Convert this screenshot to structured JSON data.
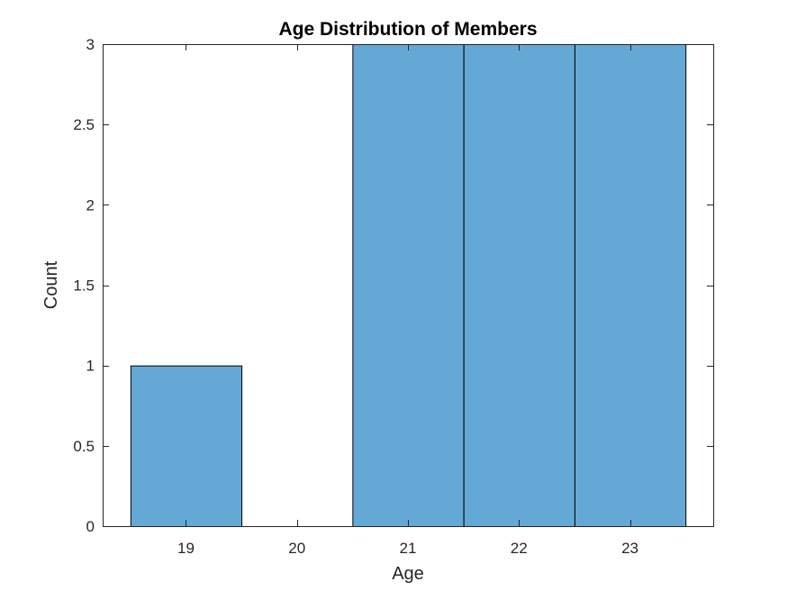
{
  "chart_data": {
    "type": "bar",
    "title": "Age Distribution of Members",
    "xlabel": "Age",
    "ylabel": "Count",
    "categories": [
      "19",
      "20",
      "21",
      "22",
      "23"
    ],
    "values": [
      1,
      0,
      3,
      3,
      3
    ],
    "xlim": [
      18.25,
      23.75
    ],
    "ylim": [
      0,
      3
    ],
    "xticks": [
      19,
      20,
      21,
      22,
      23
    ],
    "yticks": [
      0,
      0.5,
      1,
      1.5,
      2,
      2.5,
      3
    ],
    "ytick_labels": [
      "0",
      "0.5",
      "1",
      "1.5",
      "2",
      "2.5",
      "3"
    ],
    "bar_color": "#64A9D6",
    "bar_edge_color": "#000000",
    "axis_color": "#262626",
    "grid": false,
    "legend": "none"
  }
}
